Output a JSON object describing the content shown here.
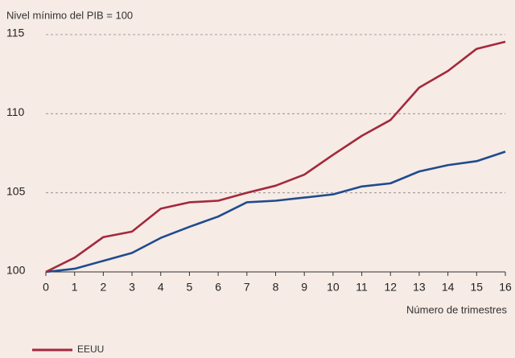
{
  "chart_data": {
    "type": "line",
    "y_axis_label": "Nivel mínimo del PIB = 100",
    "x_axis_label": "Número de trimestres",
    "x": [
      0,
      1,
      2,
      3,
      4,
      5,
      6,
      7,
      8,
      9,
      10,
      11,
      12,
      13,
      14,
      15,
      16
    ],
    "xlim": [
      0,
      16
    ],
    "xticks": [
      0,
      1,
      2,
      3,
      4,
      5,
      6,
      7,
      8,
      9,
      10,
      11,
      12,
      13,
      14,
      15,
      16
    ],
    "ylim": [
      100,
      115
    ],
    "yticks": [
      100,
      105,
      110,
      115
    ],
    "grid": true,
    "legend": "bottom-left",
    "series": [
      {
        "name": "EEUU",
        "color": "#a3293d",
        "values": [
          100,
          100.9,
          102.2,
          102.55,
          104.0,
          104.4,
          104.5,
          105.0,
          105.45,
          106.15,
          107.4,
          108.6,
          109.6,
          111.65,
          112.7,
          114.1,
          114.55
        ]
      },
      {
        "color": "#1f4b8e",
        "values": [
          100,
          100.2,
          100.7,
          101.2,
          102.15,
          102.85,
          103.5,
          104.4,
          104.5,
          104.7,
          104.9,
          105.4,
          105.6,
          106.35,
          106.75,
          107.0,
          107.6
        ]
      }
    ]
  }
}
